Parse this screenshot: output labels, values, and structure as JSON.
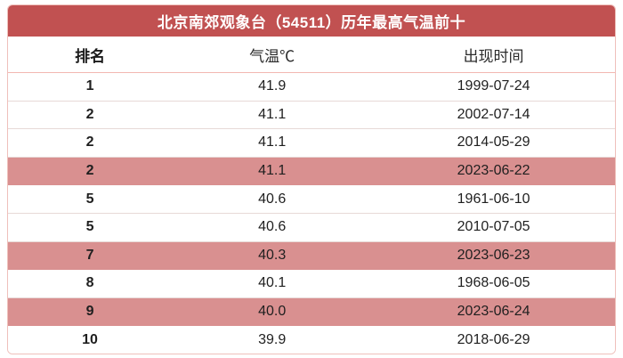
{
  "title": "北京南郊观象台（54511）历年最高气温前十",
  "table": {
    "columns": [
      "排名",
      "气温℃",
      "出现时间"
    ],
    "rows": [
      {
        "rank": "1",
        "temp": "41.9",
        "date": "1999-07-24",
        "highlight": false
      },
      {
        "rank": "2",
        "temp": "41.1",
        "date": "2002-07-14",
        "highlight": false
      },
      {
        "rank": "2",
        "temp": "41.1",
        "date": "2014-05-29",
        "highlight": false
      },
      {
        "rank": "2",
        "temp": "41.1",
        "date": "2023-06-22",
        "highlight": true
      },
      {
        "rank": "5",
        "temp": "40.6",
        "date": "1961-06-10",
        "highlight": false
      },
      {
        "rank": "5",
        "temp": "40.6",
        "date": "2010-07-05",
        "highlight": false
      },
      {
        "rank": "7",
        "temp": "40.3",
        "date": "2023-06-23",
        "highlight": true
      },
      {
        "rank": "8",
        "temp": "40.1",
        "date": "1968-06-05",
        "highlight": false
      },
      {
        "rank": "9",
        "temp": "40.0",
        "date": "2023-06-24",
        "highlight": true
      },
      {
        "rank": "10",
        "temp": "39.9",
        "date": "2018-06-29",
        "highlight": false
      }
    ]
  },
  "colors": {
    "title_bg": "#c15151",
    "title_text": "#ffffff",
    "highlight_row_bg": "#d99090",
    "outer_border": "#efc0bb",
    "row_separator": "#e7d9d7",
    "text": "#1f1f1f"
  },
  "chart_data": {
    "type": "table",
    "title": "北京南郊观象台（54511）历年最高气温前十",
    "columns": [
      "排名",
      "气温℃",
      "出现时间"
    ],
    "rows": [
      [
        "1",
        41.9,
        "1999-07-24"
      ],
      [
        "2",
        41.1,
        "2002-07-14"
      ],
      [
        "2",
        41.1,
        "2014-05-29"
      ],
      [
        "2",
        41.1,
        "2023-06-22"
      ],
      [
        "5",
        40.6,
        "1961-06-10"
      ],
      [
        "5",
        40.6,
        "2010-07-05"
      ],
      [
        "7",
        40.3,
        "2023-06-23"
      ],
      [
        "8",
        40.1,
        "1968-06-05"
      ],
      [
        "9",
        40.0,
        "2023-06-24"
      ],
      [
        "10",
        39.9,
        "2018-06-29"
      ]
    ],
    "highlighted_rows": [
      3,
      6,
      8
    ]
  }
}
